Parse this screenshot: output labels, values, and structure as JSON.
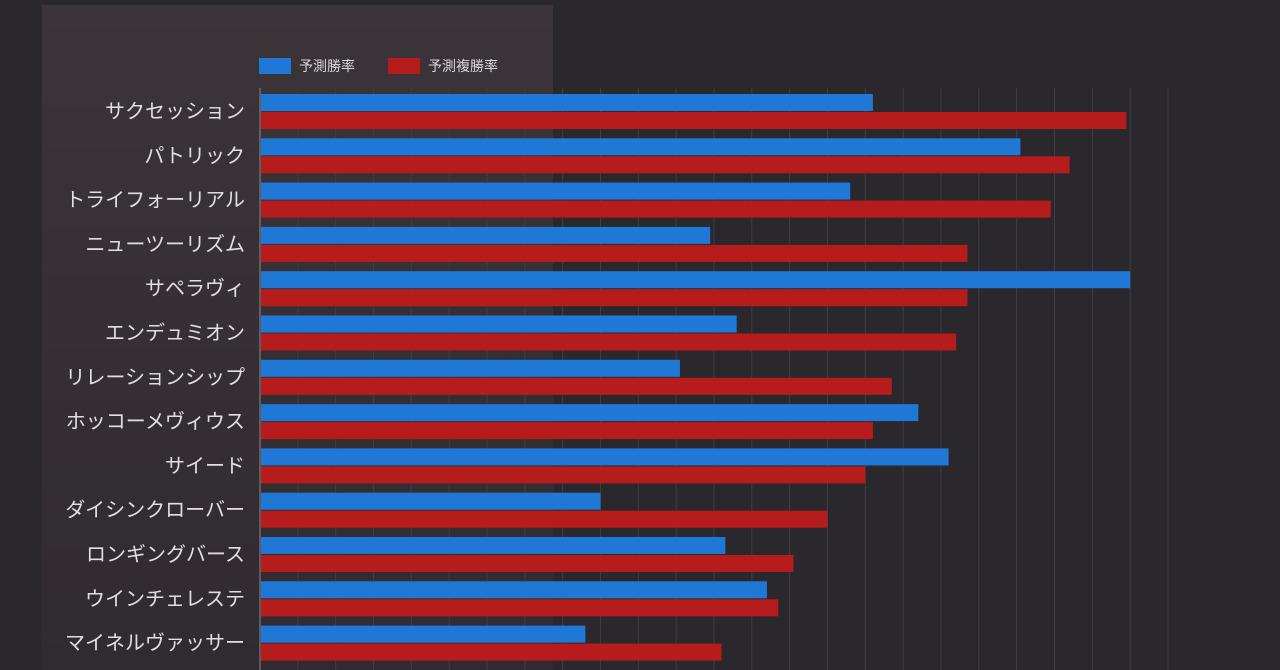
{
  "chart_data": {
    "type": "bar",
    "orientation": "horizontal",
    "categories": [
      "サクセッション",
      "パトリック",
      "トライフォーリアル",
      "ニューツーリズム",
      "サペラヴィ",
      "エンデュミオン",
      "リレーションシップ",
      "ホッコーメヴィウス",
      "サイード",
      "ダイシンクローバー",
      "ロンギングバース",
      "ウインチェレステ",
      "マイネルヴァッサー"
    ],
    "series": [
      {
        "name": "予測勝率",
        "color": "#1f78d6",
        "values": [
          16.2,
          20.1,
          15.6,
          11.9,
          23.0,
          12.6,
          11.1,
          17.4,
          18.2,
          9.0,
          12.3,
          13.4,
          8.6
        ]
      },
      {
        "name": "予測複勝率",
        "color": "#b71c1c",
        "values": [
          22.9,
          21.4,
          20.9,
          18.7,
          18.7,
          18.4,
          16.7,
          16.2,
          16.0,
          15.0,
          14.1,
          13.7,
          12.2
        ]
      }
    ],
    "xlim": [
      0,
      24
    ],
    "grid": true,
    "legend_position": "top-left"
  }
}
